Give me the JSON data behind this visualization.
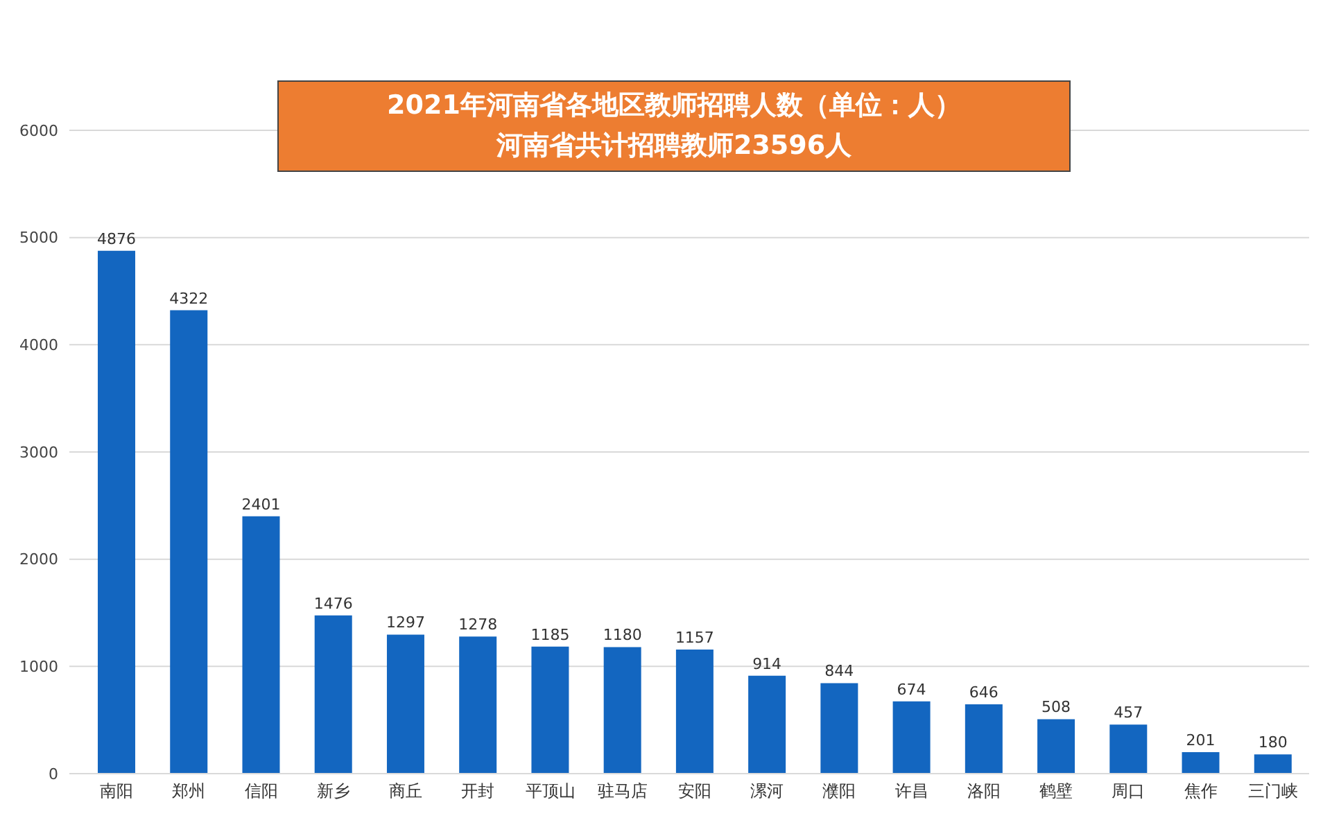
{
  "chart_data": {
    "type": "bar",
    "title": "2021年河南省各地区教师招聘人数（单位：人）",
    "subtitle": "河南省共计招聘教师23596人",
    "categories": [
      "南阳",
      "郑州",
      "信阳",
      "新乡",
      "商丘",
      "开封",
      "平顶山",
      "驻马店",
      "安阳",
      "漯河",
      "濮阳",
      "许昌",
      "洛阳",
      "鹤壁",
      "周口",
      "焦作",
      "三门峡"
    ],
    "values": [
      4876,
      4322,
      2401,
      1476,
      1297,
      1278,
      1185,
      1180,
      1157,
      914,
      844,
      674,
      646,
      508,
      457,
      201,
      180
    ],
    "color": "#1366c0",
    "ylim": [
      0,
      6000
    ],
    "yticks": [
      0,
      1000,
      2000,
      3000,
      4000,
      5000,
      6000
    ],
    "grid": "y",
    "data_labels": true
  }
}
